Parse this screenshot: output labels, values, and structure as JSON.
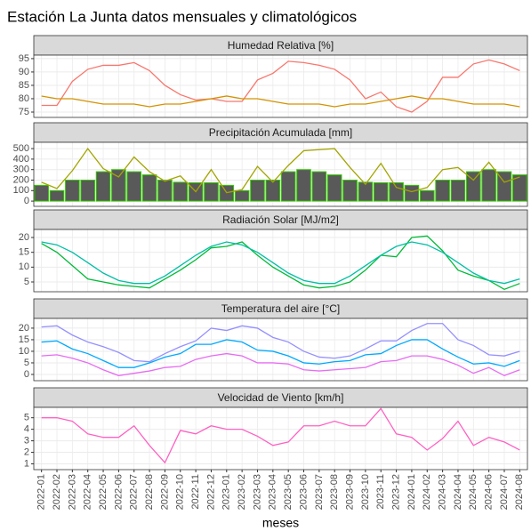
{
  "title": "Estación La Junta datos mensuales y climatológicos",
  "chart_data": [
    {
      "type": "line",
      "title": "Humedad Relativa [%]",
      "grid": true,
      "categories": [
        "2022-01",
        "2022-02",
        "2022-03",
        "2022-04",
        "2022-05",
        "2022-06",
        "2022-07",
        "2022-08",
        "2022-09",
        "2022-10",
        "2022-11",
        "2022-12",
        "2023-01",
        "2023-02",
        "2023-03",
        "2023-04",
        "2023-05",
        "2023-06",
        "2023-07",
        "2023-08",
        "2023-09",
        "2023-10",
        "2023-11",
        "2023-12",
        "2024-01",
        "2024-02",
        "2024-03",
        "2024-04",
        "2024-05",
        "2024-06",
        "2024-07",
        "2024-08"
      ],
      "ylim": [
        73,
        96.3
      ],
      "yticks": [
        75,
        80,
        85,
        90,
        95
      ],
      "series": [
        {
          "color": "#F8766D",
          "values": [
            77.5,
            77.5,
            86.5,
            91,
            92.5,
            92.5,
            93.5,
            90.5,
            85,
            81.5,
            79.5,
            80,
            79,
            79,
            87,
            89.5,
            94,
            93.5,
            92.5,
            91,
            87,
            80,
            82.5,
            77,
            75,
            79,
            88,
            88,
            93,
            94.5,
            93,
            90.5
          ]
        },
        {
          "color": "#D39200",
          "values": [
            81,
            80,
            80,
            79,
            78,
            78,
            78,
            77,
            78,
            78,
            79,
            80,
            81,
            80,
            80,
            79,
            78,
            78,
            78,
            77,
            78,
            78,
            79,
            80,
            81,
            80,
            80,
            79,
            78,
            78,
            78,
            77
          ]
        }
      ]
    },
    {
      "type": "bar",
      "title": "Precipitación Acumulada [mm]",
      "grid": true,
      "categories": [
        "2022-01",
        "2022-02",
        "2022-03",
        "2022-04",
        "2022-05",
        "2022-06",
        "2022-07",
        "2022-08",
        "2022-09",
        "2022-10",
        "2022-11",
        "2022-12",
        "2023-01",
        "2023-02",
        "2023-03",
        "2023-04",
        "2023-05",
        "2023-06",
        "2023-07",
        "2023-08",
        "2023-09",
        "2023-10",
        "2023-11",
        "2023-12",
        "2024-01",
        "2024-02",
        "2024-03",
        "2024-04",
        "2024-05",
        "2024-06",
        "2024-07",
        "2024-08"
      ],
      "ylim": [
        -50,
        560
      ],
      "yticks": [
        0,
        100,
        200,
        300,
        400,
        500
      ],
      "series": [
        {
          "type": "bar",
          "color": "#595959",
          "edgecolor": "#33CC00",
          "values": [
            150,
            100,
            200,
            200,
            280,
            300,
            280,
            250,
            200,
            180,
            175,
            175,
            150,
            100,
            200,
            200,
            280,
            300,
            280,
            250,
            200,
            180,
            175,
            175,
            150,
            100,
            200,
            200,
            280,
            300,
            280,
            250
          ]
        },
        {
          "type": "line",
          "color": "#A3A500",
          "values": [
            180,
            120,
            290,
            500,
            310,
            230,
            420,
            280,
            190,
            240,
            90,
            300,
            80,
            110,
            330,
            180,
            340,
            480,
            490,
            500,
            320,
            160,
            360,
            130,
            90,
            130,
            300,
            320,
            200,
            370,
            180,
            230
          ]
        }
      ]
    },
    {
      "type": "line",
      "title": "Radiación Solar [MJ/m2]",
      "grid": true,
      "categories": [
        "2022-01",
        "2022-02",
        "2022-03",
        "2022-04",
        "2022-05",
        "2022-06",
        "2022-07",
        "2022-08",
        "2022-09",
        "2022-10",
        "2022-11",
        "2022-12",
        "2023-01",
        "2023-02",
        "2023-03",
        "2023-04",
        "2023-05",
        "2023-06",
        "2023-07",
        "2023-08",
        "2023-09",
        "2023-10",
        "2023-11",
        "2023-12",
        "2024-01",
        "2024-02",
        "2024-03",
        "2024-04",
        "2024-05",
        "2024-06",
        "2024-07",
        "2024-08"
      ],
      "ylim": [
        1.7,
        22.7
      ],
      "yticks": [
        5,
        10,
        15,
        20
      ],
      "series": [
        {
          "color": "#00BA38",
          "values": [
            18,
            15,
            10.5,
            6,
            5,
            4,
            3.5,
            3,
            6,
            9,
            12.5,
            16.5,
            17,
            18.5,
            14,
            10,
            7,
            4,
            3,
            3.5,
            5,
            9,
            14,
            13.5,
            20,
            20.5,
            15.5,
            9,
            7,
            5.5,
            2.5,
            4.5
          ]
        },
        {
          "color": "#00BFA5",
          "values": [
            18.5,
            17.5,
            15,
            11.5,
            8,
            5.5,
            4.5,
            4.5,
            7,
            10.5,
            14,
            17,
            18.5,
            17.5,
            15,
            11.5,
            8,
            5.5,
            4.5,
            4.5,
            7,
            10.5,
            14,
            17,
            18.5,
            17.5,
            15,
            11.5,
            8,
            5.5,
            4.5,
            6
          ]
        }
      ]
    },
    {
      "type": "line",
      "title": "Temperatura del aire [°C]",
      "grid": true,
      "categories": [
        "2022-01",
        "2022-02",
        "2022-03",
        "2022-04",
        "2022-05",
        "2022-06",
        "2022-07",
        "2022-08",
        "2022-09",
        "2022-10",
        "2022-11",
        "2022-12",
        "2023-01",
        "2023-02",
        "2023-03",
        "2023-04",
        "2023-05",
        "2023-06",
        "2023-07",
        "2023-08",
        "2023-09",
        "2023-10",
        "2023-11",
        "2023-12",
        "2024-01",
        "2024-02",
        "2024-03",
        "2024-04",
        "2024-05",
        "2024-06",
        "2024-07",
        "2024-08"
      ],
      "ylim": [
        -2.7,
        24.2
      ],
      "yticks": [
        0,
        5,
        10,
        15,
        20
      ],
      "series": [
        {
          "color": "#9590FF",
          "values": [
            20.5,
            21,
            17,
            14,
            12,
            9.5,
            6,
            5.5,
            9,
            12,
            14.5,
            20,
            19,
            21,
            20,
            16,
            14,
            10,
            7.5,
            7,
            8,
            11,
            14.5,
            14.5,
            19,
            22,
            22,
            15,
            12.5,
            8.5,
            8,
            10
          ]
        },
        {
          "color": "#00A9FF",
          "values": [
            14,
            14.5,
            11,
            9,
            6,
            3,
            3,
            5,
            7.5,
            9,
            13,
            13,
            15,
            14,
            10.5,
            10,
            8,
            5,
            4.5,
            5.5,
            6,
            8.5,
            9,
            12.5,
            15,
            15,
            11,
            7.5,
            4.5,
            5,
            3.5,
            6
          ]
        },
        {
          "color": "#E76BF3",
          "values": [
            8,
            8.5,
            7,
            5,
            2,
            -0.5,
            0.5,
            1.5,
            3,
            3.5,
            6.5,
            8,
            9,
            8,
            5,
            5,
            4.5,
            2,
            1.5,
            2,
            2.5,
            3,
            5.5,
            6,
            8,
            8,
            6.5,
            4,
            0.5,
            3,
            -0.5,
            2
          ]
        }
      ]
    },
    {
      "type": "line",
      "title": "Velocidad de Viento [km/h]",
      "grid": true,
      "xlabel": "meses",
      "categories": [
        "2022-01",
        "2022-02",
        "2022-03",
        "2022-04",
        "2022-05",
        "2022-06",
        "2022-07",
        "2022-08",
        "2022-09",
        "2022-10",
        "2022-11",
        "2022-12",
        "2023-01",
        "2023-02",
        "2023-03",
        "2023-04",
        "2023-05",
        "2023-06",
        "2023-07",
        "2023-08",
        "2023-09",
        "2023-10",
        "2023-11",
        "2023-12",
        "2024-01",
        "2024-02",
        "2024-03",
        "2024-04",
        "2024-05",
        "2024-06",
        "2024-07",
        "2024-08"
      ],
      "ylim": [
        0.5,
        5.9
      ],
      "yticks": [
        1,
        2,
        3,
        4,
        5
      ],
      "series": [
        {
          "color": "#FF61C3",
          "values": [
            5,
            5,
            4.7,
            3.6,
            3.3,
            3.3,
            4.3,
            2.6,
            1.1,
            3.9,
            3.6,
            4.3,
            4,
            4,
            3.4,
            2.6,
            2.9,
            4.3,
            4.3,
            4.7,
            4.3,
            4.3,
            5.8,
            3.6,
            3.3,
            2.2,
            3.2,
            4.7,
            2.6,
            3.3,
            2.9,
            2.2
          ]
        }
      ]
    }
  ]
}
